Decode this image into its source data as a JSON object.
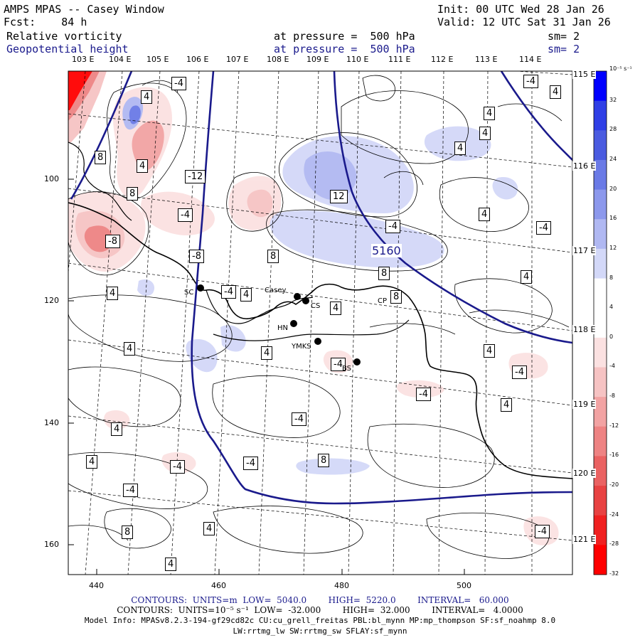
{
  "header": {
    "model_title": "AMPS MPAS -- Casey Window",
    "forecast": "Fcst:    84 h",
    "init": "Init: 00 UTC Wed 28 Jan 26",
    "valid": "Valid: 12 UTC Sat 31 Jan 26",
    "field1": "Relative vorticity",
    "field2": "Geopotential height",
    "pressure1": "at pressure =  500 hPa",
    "pressure2": "at pressure =  500 hPa",
    "sm1": "sm= 2",
    "sm2": "sm= 2"
  },
  "axes": {
    "lon_labels": [
      "103 E",
      "104 E",
      "105 E",
      "106 E",
      "107 E",
      "108 E",
      "109 E",
      "110 E",
      "111 E",
      "112 E",
      "113 E",
      "114 E"
    ],
    "lat_labels": [
      "115 E",
      "116 E",
      "117 E",
      "118 E",
      "119 E",
      "120 E",
      "121 E"
    ],
    "y_ticks": [
      "100",
      "120",
      "140",
      "160"
    ],
    "x_ticks": [
      "440",
      "460",
      "480",
      "500"
    ]
  },
  "colorbar": {
    "unit": "10⁻⁵ s⁻¹",
    "labels": [
      "32",
      "28",
      "24",
      "20",
      "16",
      "12",
      "8",
      "4",
      "0",
      "-4",
      "-8",
      "-12",
      "-16",
      "-20",
      "-24",
      "-28",
      "-32"
    ],
    "colors": [
      "#0000ff",
      "#2f3fe6",
      "#4a5be0",
      "#6a7ae6",
      "#8c98ec",
      "#b0b8f2",
      "#d3d8f8",
      "#ffffff",
      "#ffffff",
      "#fbe1e1",
      "#f6c3c3",
      "#f2a3a3",
      "#ee8383",
      "#ea6262",
      "#e84242",
      "#f02020",
      "#ff0000"
    ]
  },
  "stations": {
    "sc": "SC",
    "casey": "Casey",
    "cs": "CS",
    "cp": "CP",
    "hn": "HN",
    "ymks": "YMKS",
    "bs": "BS"
  },
  "contour_labels": {
    "geopotential": "5160",
    "vorticity": [
      "4",
      "-4",
      "8",
      "4",
      "-12",
      "8",
      "-4",
      "-8",
      "-8",
      "8",
      "12",
      "4",
      "-4",
      "-4",
      "4",
      "8",
      "4",
      "-4",
      "4",
      "4",
      "8",
      "4",
      "4",
      "4",
      "4",
      "-4",
      "-4",
      "-4",
      "-4",
      "4",
      "-4",
      "4",
      "-4",
      "-4",
      "8",
      "8",
      "4",
      "-4",
      "4",
      "4",
      "4",
      "4",
      "-4",
      "4"
    ]
  },
  "footer": {
    "contours1": "CONTOURS:  UNITS=m  LOW=  5040.0        HIGH=  5220.0        INTERVAL=   60.000",
    "contours2": "CONTOURS:  UNITS=10⁻⁵ s⁻¹  LOW=  -32.000        HIGH=  32.000        INTERVAL=   4.0000",
    "model_info": "Model Info: MPASv8.2.3-194-gf29cd82c CU:cu_grell_freitas PBL:bl_mynn MP:mp_thompson SF:sf_noahmp 8.0",
    "model_info2": "LW:rrtmg_lw SW:rrtmg_sw SFLAY:sf_mynn"
  }
}
